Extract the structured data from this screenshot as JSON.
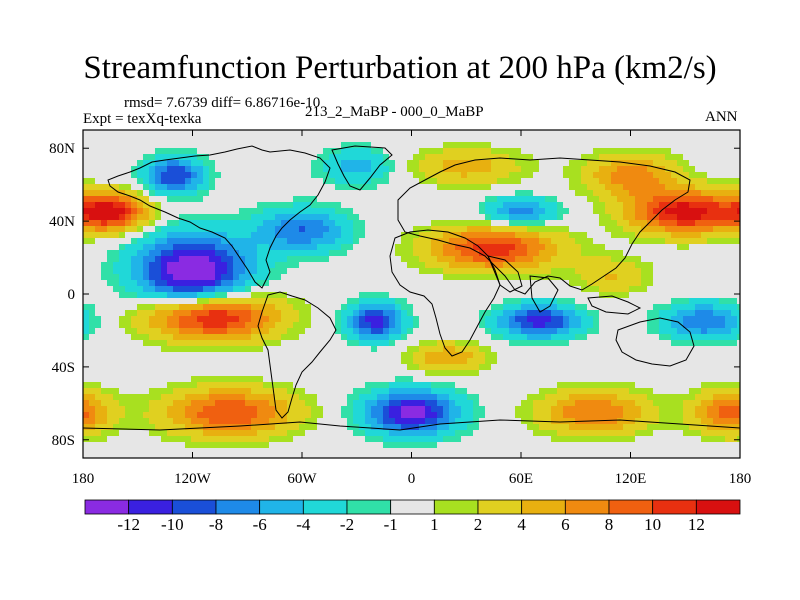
{
  "chart_data": {
    "type": "heatmap",
    "title": "Streamfunction Perturbation at 200 hPa (km2/s)",
    "stats_line": "rmsd= 7.6739 diff= 6.86716e-10",
    "experiment_line": "Expt = texXq-texka",
    "comparison_line": "213_2_MaBP - 000_0_MaBP",
    "season": "ANN",
    "xlim": [
      -180,
      180
    ],
    "ylim": [
      -90,
      90
    ],
    "x_ticks": [
      {
        "value": -180,
        "label": "180"
      },
      {
        "value": -120,
        "label": "120W"
      },
      {
        "value": -60,
        "label": "60W"
      },
      {
        "value": 0,
        "label": "0"
      },
      {
        "value": 60,
        "label": "60E"
      },
      {
        "value": 120,
        "label": "120E"
      },
      {
        "value": 180,
        "label": "180"
      }
    ],
    "y_ticks": [
      {
        "value": 80,
        "label": "80N"
      },
      {
        "value": 40,
        "label": "40N"
      },
      {
        "value": 0,
        "label": "0"
      },
      {
        "value": -40,
        "label": "40S"
      },
      {
        "value": -80,
        "label": "80S"
      }
    ],
    "contour_levels": [
      -12,
      -10,
      -8,
      -6,
      -4,
      -2,
      -1,
      1,
      2,
      4,
      6,
      8,
      10,
      12
    ],
    "colorbar_labels": [
      "-12",
      "-10",
      "-8",
      "-6",
      "-4",
      "-2",
      "-1",
      "1",
      "2",
      "4",
      "6",
      "8",
      "10",
      "12"
    ],
    "colors": [
      "#8a2be2",
      "#3a20e0",
      "#1a4fd8",
      "#1e8ae8",
      "#20b4e8",
      "#20d8d8",
      "#30e0a8",
      "#e6e6e6",
      "#a8e020",
      "#e0d020",
      "#e8b010",
      "#f08a10",
      "#f06010",
      "#e83010",
      "#d81010"
    ],
    "field_centers": [
      {
        "lon": -120,
        "lat": 12,
        "value": -15,
        "sx": 30,
        "sy": 20
      },
      {
        "lon": -110,
        "lat": -12,
        "value": 14,
        "sx": 35,
        "sy": 13
      },
      {
        "lon": -165,
        "lat": 45,
        "value": 13,
        "sx": 20,
        "sy": 10
      },
      {
        "lon": -130,
        "lat": 65,
        "value": -10,
        "sx": 16,
        "sy": 10
      },
      {
        "lon": 45,
        "lat": 25,
        "value": 11,
        "sx": 35,
        "sy": 12
      },
      {
        "lon": 150,
        "lat": 45,
        "value": 13,
        "sx": 30,
        "sy": 12
      },
      {
        "lon": 120,
        "lat": 65,
        "value": 7,
        "sx": 25,
        "sy": 12
      },
      {
        "lon": 30,
        "lat": 70,
        "value": 5,
        "sx": 30,
        "sy": 10
      },
      {
        "lon": -30,
        "lat": 70,
        "value": -5,
        "sx": 20,
        "sy": 10
      },
      {
        "lon": 60,
        "lat": 45,
        "value": -7,
        "sx": 20,
        "sy": 8
      },
      {
        "lon": -20,
        "lat": -15,
        "value": -11,
        "sx": 15,
        "sy": 10
      },
      {
        "lon": 70,
        "lat": -15,
        "value": -11,
        "sx": 22,
        "sy": 9
      },
      {
        "lon": 160,
        "lat": -15,
        "value": -8,
        "sx": 22,
        "sy": 10
      },
      {
        "lon": 0,
        "lat": -65,
        "value": -13,
        "sx": 25,
        "sy": 12
      },
      {
        "lon": -100,
        "lat": -65,
        "value": 10,
        "sx": 35,
        "sy": 13
      },
      {
        "lon": 100,
        "lat": -65,
        "value": 8,
        "sx": 30,
        "sy": 12
      },
      {
        "lon": 175,
        "lat": -65,
        "value": 9,
        "sx": 20,
        "sy": 12
      },
      {
        "lon": 20,
        "lat": -35,
        "value": 6,
        "sx": 20,
        "sy": 8
      },
      {
        "lon": -60,
        "lat": 35,
        "value": -8,
        "sx": 25,
        "sy": 12
      },
      {
        "lon": 110,
        "lat": 10,
        "value": 4,
        "sx": 20,
        "sy": 10
      }
    ]
  }
}
